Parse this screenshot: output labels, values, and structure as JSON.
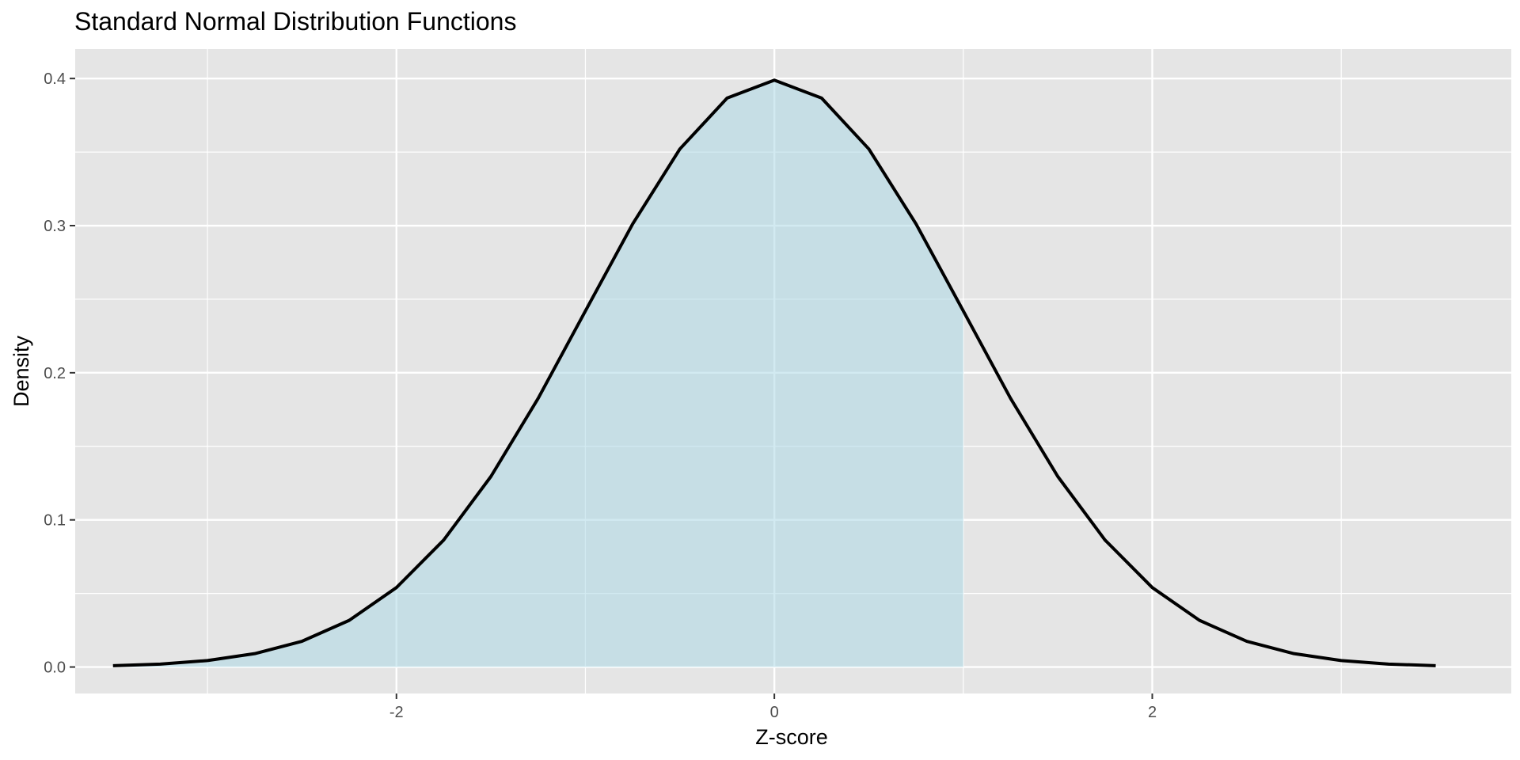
{
  "chart_data": {
    "type": "area",
    "title": "Standard Normal Distribution Functions",
    "xlabel": "Z-score",
    "ylabel": "Density",
    "xlim": [
      -3.7,
      3.9
    ],
    "ylim": [
      -0.018,
      0.42
    ],
    "x_ticks": [
      -2,
      0,
      2
    ],
    "x_tick_labels": [
      "-2",
      "0",
      "2"
    ],
    "y_ticks": [
      0.0,
      0.1,
      0.2,
      0.3,
      0.4
    ],
    "y_tick_labels": [
      "0.0",
      "0.1",
      "0.2",
      "0.3",
      "0.4"
    ],
    "x_minor_gridlines": [
      -3,
      -1,
      1,
      3
    ],
    "y_minor_gridlines": [
      0.05,
      0.15,
      0.25,
      0.35
    ],
    "grid": true,
    "series": [
      {
        "kind": "line",
        "x": [
          -3.5,
          -3.25,
          -3.0,
          -2.75,
          -2.5,
          -2.25,
          -2.0,
          -1.75,
          -1.5,
          -1.25,
          -1.0,
          -0.75,
          -0.5,
          -0.25,
          0.0,
          0.25,
          0.5,
          0.75,
          1.0,
          1.25,
          1.5,
          1.75,
          2.0,
          2.25,
          2.5,
          2.75,
          3.0,
          3.25,
          3.5
        ],
        "y": [
          0.0009,
          0.002,
          0.0044,
          0.0091,
          0.0175,
          0.0317,
          0.054,
          0.0863,
          0.1295,
          0.1826,
          0.242,
          0.3011,
          0.3521,
          0.3867,
          0.3989,
          0.3867,
          0.3521,
          0.3011,
          0.242,
          0.1826,
          0.1295,
          0.0863,
          0.054,
          0.0317,
          0.0175,
          0.0091,
          0.0044,
          0.002,
          0.0009
        ],
        "color": "#000000"
      },
      {
        "kind": "area",
        "x": [
          -3.5,
          -3.25,
          -3.0,
          -2.75,
          -2.5,
          -2.25,
          -2.0,
          -1.75,
          -1.5,
          -1.25,
          -1.0,
          -0.75,
          -0.5,
          -0.25,
          0.0,
          0.25,
          0.5,
          0.75,
          1.0
        ],
        "y": [
          0.0009,
          0.002,
          0.0044,
          0.0091,
          0.0175,
          0.0317,
          0.054,
          0.0863,
          0.1295,
          0.1826,
          0.242,
          0.3011,
          0.3521,
          0.3867,
          0.3989,
          0.3867,
          0.3521,
          0.3011,
          0.242
        ],
        "color": "#add8e6"
      }
    ],
    "colors": {
      "panel_background": "#e5e5e5",
      "grid": "#ffffff",
      "line": "#000000",
      "fill": "#add8e6",
      "tick_label": "#4d4d4d"
    }
  }
}
